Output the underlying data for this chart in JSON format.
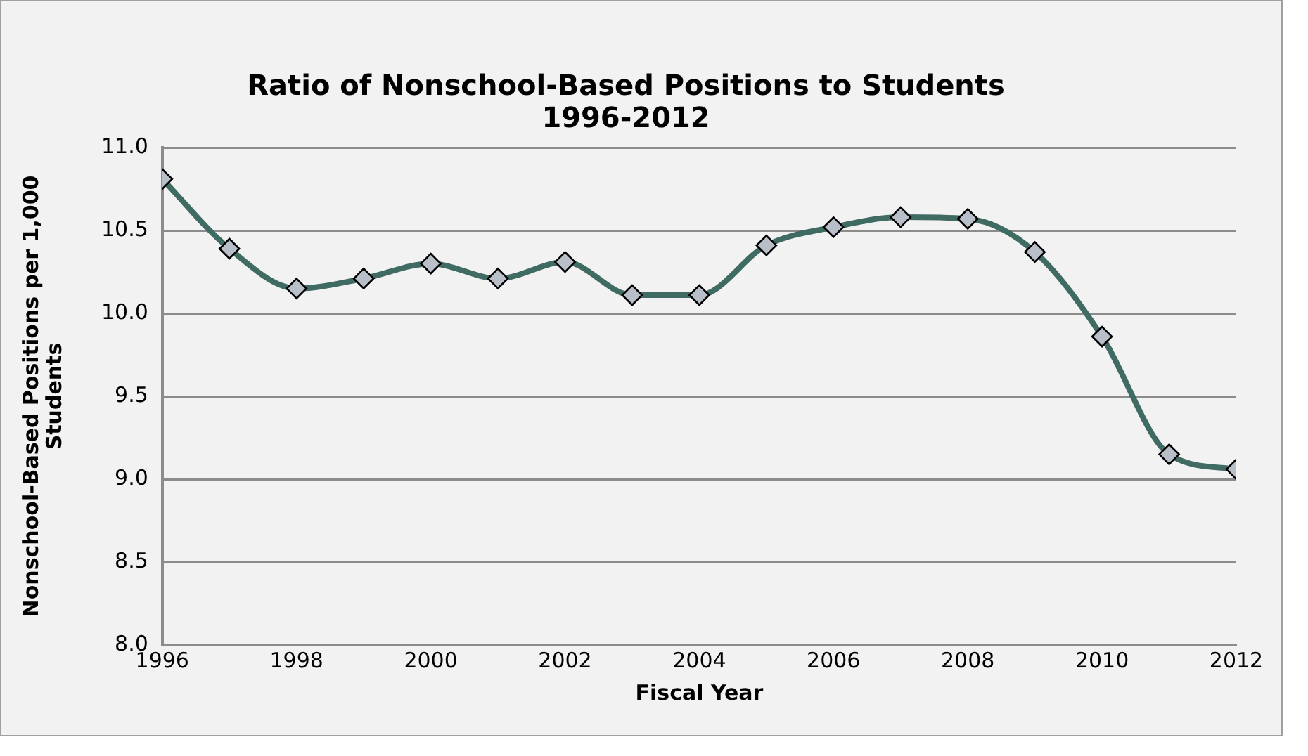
{
  "chart_data": {
    "type": "line",
    "title": "Ratio of Nonschool-Based Positions to Students\n1996-2012",
    "xlabel": "Fiscal Year",
    "ylabel": "Nonschool-Based Positions per 1,000 Students",
    "x": [
      1996,
      1997,
      1998,
      1999,
      2000,
      2001,
      2002,
      2003,
      2004,
      2005,
      2006,
      2007,
      2008,
      2009,
      2010,
      2011,
      2012
    ],
    "series": [
      {
        "color": "#3f6b62",
        "values": [
          10.81,
          10.39,
          10.15,
          10.21,
          10.3,
          10.21,
          10.31,
          10.11,
          10.11,
          10.41,
          10.52,
          10.58,
          10.57,
          10.37,
          9.86,
          9.15,
          9.06
        ]
      }
    ],
    "xlim": [
      1996,
      2012
    ],
    "xticks": [
      1996,
      1998,
      2000,
      2002,
      2004,
      2006,
      2008,
      2010,
      2012
    ],
    "ylim": [
      8.0,
      11.0
    ],
    "yticks": [
      {
        "value": 8,
        "label": "8.0"
      },
      {
        "value": 8.5,
        "label": "8.5"
      },
      {
        "value": 9,
        "label": "9.0"
      },
      {
        "value": 9.5,
        "label": "9.5"
      },
      {
        "value": 10,
        "label": "10.0"
      },
      {
        "value": 10.5,
        "label": "10.5"
      },
      {
        "value": 11,
        "label": "11.0"
      }
    ],
    "grid": "y",
    "legend": false,
    "marker": "diamond",
    "line_style": "solid"
  }
}
